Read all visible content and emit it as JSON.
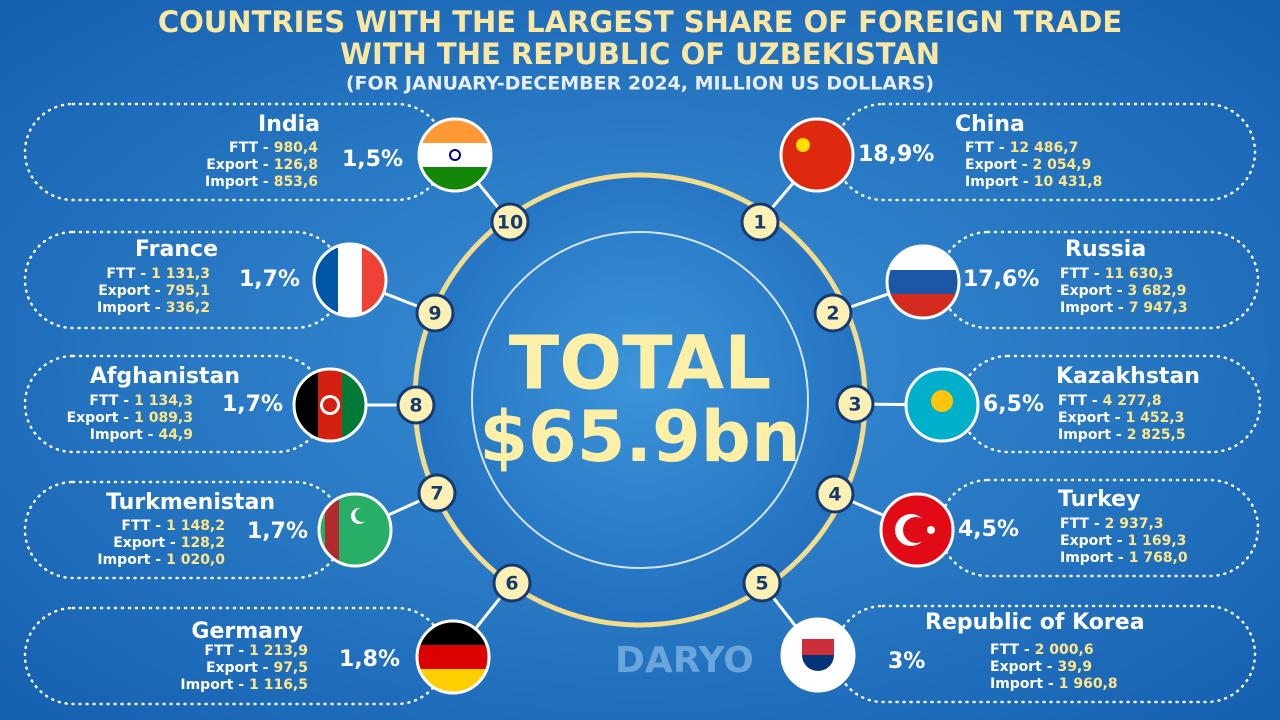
{
  "header": {
    "title_line1": "COUNTRIES WITH THE LARGEST SHARE OF FOREIGN TRADE",
    "title_line2": "WITH THE REPUBLIC OF UZBEKISTAN",
    "subtitle": "(FOR JANUARY-DECEMBER 2024, MILLION US DOLLARS)"
  },
  "total": {
    "label": "TOTAL",
    "value": "$65.9bn"
  },
  "labels": {
    "ftt": "FTT -",
    "export": "Export -",
    "import": "Import -"
  },
  "countries": [
    {
      "rank": 1,
      "name": "China",
      "share": "18,9%",
      "ftt": "12 486,7",
      "export": "2 054,9",
      "import": "10 431,8"
    },
    {
      "rank": 2,
      "name": "Russia",
      "share": "17,6%",
      "ftt": "11 630,3",
      "export": "3 682,9",
      "import": "7 947,3"
    },
    {
      "rank": 3,
      "name": "Kazakhstan",
      "share": "6,5%",
      "ftt": "4 277,8",
      "export": "1 452,3",
      "import": "2 825,5"
    },
    {
      "rank": 4,
      "name": "Turkey",
      "share": "4,5%",
      "ftt": "2 937,3",
      "export": "1 169,3",
      "import": "1 768,0"
    },
    {
      "rank": 5,
      "name": "Republic of Korea",
      "share": "3%",
      "ftt": "2 000,6",
      "export": "39,9",
      "import": "1 960,8"
    },
    {
      "rank": 6,
      "name": "Germany",
      "share": "1,8%",
      "ftt": "1 213,9",
      "export": "97,5",
      "import": "1 116,5"
    },
    {
      "rank": 7,
      "name": "Turkmenistan",
      "share": "1,7%",
      "ftt": "1 148,2",
      "export": "128,2",
      "import": "1 020,0"
    },
    {
      "rank": 8,
      "name": "Afghanistan",
      "share": "1,7%",
      "ftt": "1 134,3",
      "export": "1 089,3",
      "import": "44,9"
    },
    {
      "rank": 9,
      "name": "France",
      "share": "1,7%",
      "ftt": "1 131,3",
      "export": "795,1",
      "import": "336,2"
    },
    {
      "rank": 10,
      "name": "India",
      "share": "1,5%",
      "ftt": "980,4",
      "export": "126,8",
      "import": "853,6"
    }
  ],
  "watermark": "DARYO"
}
